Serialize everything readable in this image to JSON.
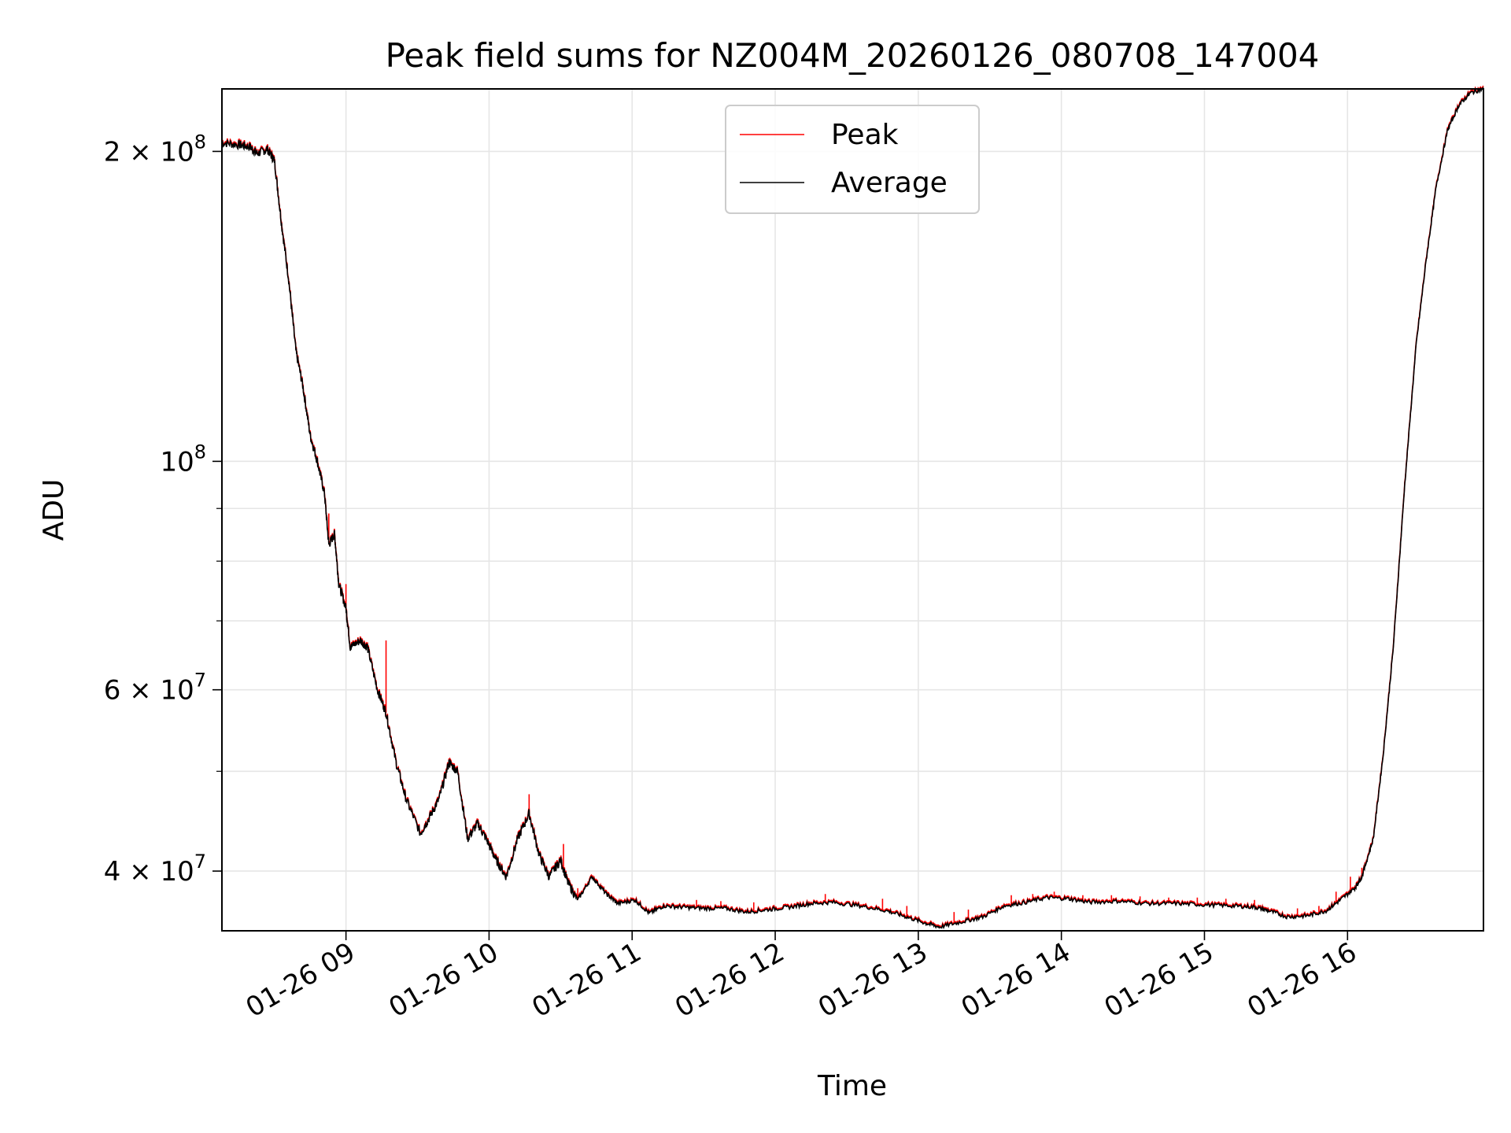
{
  "chart_data": {
    "type": "line",
    "title": "Peak field sums for NZ004M_20260126_080708_147004",
    "xlabel": "Time",
    "ylabel": "ADU",
    "yscale": "log",
    "xlim_hours": [
      8.133,
      16.95
    ],
    "ylim": [
      35000000,
      230000000
    ],
    "grid": true,
    "legend_location": "upper center",
    "x_ticks": [
      {
        "hour": 9,
        "label": "01-26 09"
      },
      {
        "hour": 10,
        "label": "01-26 10"
      },
      {
        "hour": 11,
        "label": "01-26 11"
      },
      {
        "hour": 12,
        "label": "01-26 12"
      },
      {
        "hour": 13,
        "label": "01-26 13"
      },
      {
        "hour": 14,
        "label": "01-26 14"
      },
      {
        "hour": 15,
        "label": "01-26 15"
      },
      {
        "hour": 16,
        "label": "01-26 16"
      }
    ],
    "y_major_ticks": [
      {
        "value": 40000000,
        "mantissa": "4",
        "exponent": "7",
        "times": "×",
        "base": "10"
      },
      {
        "value": 60000000,
        "mantissa": "6",
        "exponent": "7",
        "times": "×",
        "base": "10"
      },
      {
        "value": 100000000,
        "mantissa": "",
        "exponent": "8",
        "times": "",
        "base": "10"
      },
      {
        "value": 200000000,
        "mantissa": "2",
        "exponent": "8",
        "times": "×",
        "base": "10"
      }
    ],
    "y_minor_ticks": [
      50000000,
      70000000,
      80000000,
      90000000
    ],
    "series": [
      {
        "name": "Average",
        "color": "#000000",
        "points": [
          [
            8.133,
            204000000
          ],
          [
            8.25,
            203000000
          ],
          [
            8.33,
            202000000
          ],
          [
            8.38,
            199000000
          ],
          [
            8.45,
            201000000
          ],
          [
            8.5,
            196000000
          ],
          [
            8.55,
            170000000
          ],
          [
            8.6,
            150000000
          ],
          [
            8.65,
            128000000
          ],
          [
            8.7,
            118000000
          ],
          [
            8.75,
            106000000
          ],
          [
            8.8,
            100000000
          ],
          [
            8.85,
            93000000
          ],
          [
            8.88,
            83000000
          ],
          [
            8.92,
            85000000
          ],
          [
            8.95,
            76000000
          ],
          [
            9.0,
            72000000
          ],
          [
            9.03,
            66000000
          ],
          [
            9.1,
            67000000
          ],
          [
            9.15,
            66000000
          ],
          [
            9.22,
            60000000
          ],
          [
            9.28,
            57000000
          ],
          [
            9.35,
            51000000
          ],
          [
            9.42,
            47000000
          ],
          [
            9.52,
            43500000
          ],
          [
            9.58,
            45000000
          ],
          [
            9.65,
            47000000
          ],
          [
            9.72,
            51000000
          ],
          [
            9.78,
            50000000
          ],
          [
            9.85,
            43000000
          ],
          [
            9.92,
            44500000
          ],
          [
            9.98,
            43000000
          ],
          [
            10.05,
            41000000
          ],
          [
            10.12,
            39500000
          ],
          [
            10.2,
            43000000
          ],
          [
            10.28,
            45500000
          ],
          [
            10.35,
            41500000
          ],
          [
            10.42,
            39500000
          ],
          [
            10.5,
            41000000
          ],
          [
            10.55,
            39000000
          ],
          [
            10.62,
            37500000
          ],
          [
            10.72,
            39500000
          ],
          [
            10.82,
            38000000
          ],
          [
            10.9,
            37200000
          ],
          [
            11.02,
            37500000
          ],
          [
            11.12,
            36400000
          ],
          [
            11.22,
            37000000
          ],
          [
            11.35,
            36900000
          ],
          [
            11.5,
            36800000
          ],
          [
            11.65,
            36800000
          ],
          [
            11.8,
            36500000
          ],
          [
            11.95,
            36700000
          ],
          [
            12.1,
            36900000
          ],
          [
            12.25,
            37200000
          ],
          [
            12.4,
            37300000
          ],
          [
            12.6,
            37000000
          ],
          [
            12.78,
            36600000
          ],
          [
            12.92,
            36100000
          ],
          [
            13.05,
            35600000
          ],
          [
            13.15,
            35300000
          ],
          [
            13.3,
            35700000
          ],
          [
            13.45,
            36100000
          ],
          [
            13.6,
            37000000
          ],
          [
            13.75,
            37300000
          ],
          [
            13.9,
            37700000
          ],
          [
            14.05,
            37600000
          ],
          [
            14.2,
            37300000
          ],
          [
            14.4,
            37400000
          ],
          [
            14.6,
            37200000
          ],
          [
            14.8,
            37200000
          ],
          [
            15.0,
            37100000
          ],
          [
            15.2,
            37000000
          ],
          [
            15.35,
            36900000
          ],
          [
            15.45,
            36600000
          ],
          [
            15.58,
            36100000
          ],
          [
            15.72,
            36200000
          ],
          [
            15.85,
            36600000
          ],
          [
            15.95,
            37500000
          ],
          [
            16.05,
            38500000
          ],
          [
            16.1,
            39500000
          ],
          [
            16.18,
            43000000
          ],
          [
            16.25,
            52000000
          ],
          [
            16.32,
            66000000
          ],
          [
            16.4,
            95000000
          ],
          [
            16.48,
            130000000
          ],
          [
            16.55,
            157000000
          ],
          [
            16.62,
            185000000
          ],
          [
            16.7,
            210000000
          ],
          [
            16.78,
            222000000
          ],
          [
            16.86,
            228000000
          ],
          [
            16.95,
            230000000
          ]
        ]
      },
      {
        "name": "Peak",
        "color": "#ff0000",
        "spikes": [
          [
            8.88,
            89000000
          ],
          [
            9.0,
            76000000
          ],
          [
            9.28,
            67000000
          ],
          [
            10.28,
            47500000
          ],
          [
            10.52,
            42500000
          ],
          [
            10.62,
            38500000
          ],
          [
            11.45,
            37500000
          ],
          [
            11.62,
            37400000
          ],
          [
            11.85,
            37300000
          ],
          [
            12.35,
            38000000
          ],
          [
            12.75,
            37600000
          ],
          [
            12.92,
            37000000
          ],
          [
            13.25,
            36500000
          ],
          [
            13.35,
            36700000
          ],
          [
            13.65,
            37900000
          ],
          [
            13.8,
            38000000
          ],
          [
            13.95,
            38200000
          ],
          [
            14.15,
            37900000
          ],
          [
            14.35,
            37900000
          ],
          [
            14.55,
            37800000
          ],
          [
            14.75,
            37700000
          ],
          [
            14.95,
            37700000
          ],
          [
            15.15,
            37600000
          ],
          [
            15.35,
            37500000
          ],
          [
            15.65,
            36800000
          ],
          [
            15.8,
            37000000
          ],
          [
            15.92,
            38200000
          ],
          [
            16.02,
            39500000
          ],
          [
            16.1,
            40300000
          ]
        ]
      }
    ]
  }
}
